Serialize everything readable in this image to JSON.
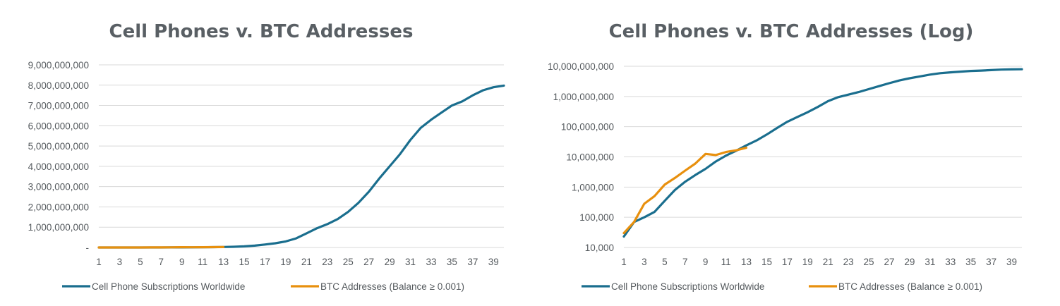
{
  "colors": {
    "cell": "#1a6e8e",
    "btc": "#e8900e",
    "grid": "#d9d9d9",
    "text": "#555a5e",
    "title": "#595f64"
  },
  "chart_data": [
    {
      "type": "line",
      "title": "Cell Phones v. BTC Addresses",
      "xlabel": "",
      "ylabel": "",
      "scale": "linear",
      "xlim": [
        1,
        40
      ],
      "ylim": [
        0,
        9000000000
      ],
      "x_ticks": [
        "1",
        "3",
        "5",
        "7",
        "9",
        "11",
        "13",
        "15",
        "17",
        "19",
        "21",
        "23",
        "25",
        "27",
        "29",
        "31",
        "33",
        "35",
        "37",
        "39"
      ],
      "y_ticks": [
        "-",
        "1,000,000,000",
        "2,000,000,000",
        "3,000,000,000",
        "4,000,000,000",
        "5,000,000,000",
        "6,000,000,000",
        "7,000,000,000",
        "8,000,000,000",
        "9,000,000,000"
      ],
      "grid": true,
      "legend": "bottom",
      "series": [
        {
          "name": "Cell Phone Subscriptions Worldwide",
          "color": "#1a6e8e",
          "x": [
            1,
            2,
            3,
            4,
            5,
            6,
            7,
            8,
            9,
            10,
            11,
            12,
            13,
            14,
            15,
            16,
            17,
            18,
            19,
            20,
            21,
            22,
            23,
            24,
            25,
            26,
            27,
            28,
            29,
            30,
            31,
            32,
            33,
            34,
            35,
            36,
            37,
            38,
            39,
            40
          ],
          "y": [
            23000,
            70000,
            100000,
            150000,
            350000,
            800000,
            1500000,
            2500000,
            4000000,
            7000000,
            11000000,
            16000000,
            24000000,
            35000000,
            55000000,
            90000000,
            145000000,
            210000000,
            300000000,
            450000000,
            700000000,
            950000000,
            1150000000,
            1400000000,
            1750000000,
            2200000000,
            2750000000,
            3400000000,
            4000000000,
            4600000000,
            5300000000,
            5900000000,
            6300000000,
            6650000000,
            7000000000,
            7200000000,
            7500000000,
            7750000000,
            7900000000,
            7980000000
          ]
        },
        {
          "name": "BTC Addresses (Balance ≥ 0.001)",
          "color": "#e8900e",
          "x": [
            1,
            2,
            3,
            4,
            5,
            6,
            7,
            8,
            9,
            10,
            11,
            12,
            13
          ],
          "y": [
            30000,
            70000,
            280000,
            500000,
            1200000,
            2000000,
            3500000,
            6000000,
            12500000,
            11500000,
            14500000,
            16500000,
            20000000
          ]
        }
      ]
    },
    {
      "type": "line",
      "title": "Cell Phones v. BTC Addresses (Log)",
      "xlabel": "",
      "ylabel": "",
      "scale": "log",
      "xlim": [
        1,
        40
      ],
      "ylim": [
        10000,
        10000000000
      ],
      "x_ticks": [
        "1",
        "3",
        "5",
        "7",
        "9",
        "11",
        "13",
        "15",
        "17",
        "19",
        "21",
        "23",
        "25",
        "27",
        "29",
        "31",
        "33",
        "35",
        "37",
        "39"
      ],
      "y_ticks": [
        "10,000",
        "100,000",
        "1,000,000",
        "10,000,000",
        "100,000,000",
        "1,000,000,000",
        "10,000,000,000"
      ],
      "grid": true,
      "legend": "bottom",
      "series": [
        {
          "name": "Cell Phone Subscriptions Worldwide",
          "color": "#1a6e8e",
          "x": [
            1,
            2,
            3,
            4,
            5,
            6,
            7,
            8,
            9,
            10,
            11,
            12,
            13,
            14,
            15,
            16,
            17,
            18,
            19,
            20,
            21,
            22,
            23,
            24,
            25,
            26,
            27,
            28,
            29,
            30,
            31,
            32,
            33,
            34,
            35,
            36,
            37,
            38,
            39,
            40
          ],
          "y": [
            23000,
            70000,
            100000,
            150000,
            350000,
            800000,
            1500000,
            2500000,
            4000000,
            7000000,
            11000000,
            16000000,
            24000000,
            35000000,
            55000000,
            90000000,
            145000000,
            210000000,
            300000000,
            450000000,
            700000000,
            950000000,
            1150000000,
            1400000000,
            1750000000,
            2200000000,
            2750000000,
            3400000000,
            4000000000,
            4600000000,
            5300000000,
            5900000000,
            6300000000,
            6650000000,
            7000000000,
            7200000000,
            7500000000,
            7750000000,
            7900000000,
            7980000000
          ]
        },
        {
          "name": "BTC Addresses (Balance ≥ 0.001)",
          "color": "#e8900e",
          "x": [
            1,
            2,
            3,
            4,
            5,
            6,
            7,
            8,
            9,
            10,
            11,
            12,
            13
          ],
          "y": [
            30000,
            70000,
            280000,
            500000,
            1200000,
            2000000,
            3500000,
            6000000,
            12500000,
            11500000,
            14500000,
            16500000,
            20000000
          ]
        }
      ]
    }
  ]
}
